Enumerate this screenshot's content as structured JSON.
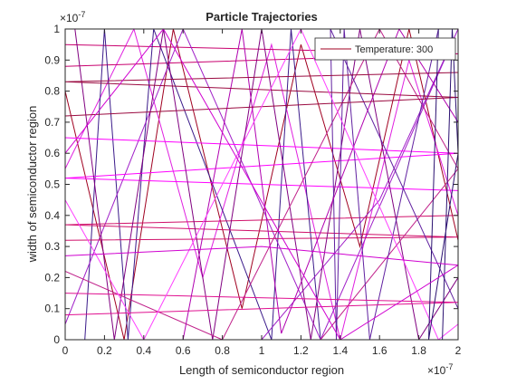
{
  "chart_data": {
    "type": "line",
    "title": "Particle Trajectories",
    "xlabel": "Length of semiconductor region",
    "ylabel": "width of semiconductor region",
    "x_exponent": "×10",
    "x_exponent_power": "-7",
    "y_exponent": "×10",
    "y_exponent_power": "-7",
    "xlim": [
      0,
      2
    ],
    "ylim": [
      0,
      1
    ],
    "xticks": [
      0,
      0.2,
      0.4,
      0.6,
      0.8,
      1,
      1.2,
      1.4,
      1.6,
      1.8,
      2
    ],
    "yticks": [
      0,
      0.1,
      0.2,
      0.3,
      0.4,
      0.5,
      0.6,
      0.7,
      0.8,
      0.9,
      1
    ],
    "legend": "top-right",
    "series": [
      {
        "name": "Temperature: 300",
        "color": "#a00020",
        "x": [
          0,
          0.3,
          0.55,
          0.9,
          1.2,
          1.5,
          1.75,
          2
        ],
        "y": [
          0.8,
          0,
          1,
          0.1,
          0.95,
          0.3,
          1,
          0.32
        ]
      },
      {
        "color": "#e020e0",
        "x": [
          0,
          0.35,
          0.7,
          1.05,
          1.4,
          1.75,
          2
        ],
        "y": [
          0.55,
          1,
          0.2,
          0.95,
          0,
          0.9,
          0.4
        ]
      },
      {
        "color": "#c8006e",
        "x": [
          0,
          2,
          0
        ],
        "y": [
          0.95,
          0.92,
          0.88
        ]
      },
      {
        "color": "#3a1a8a",
        "x": [
          0.1,
          0.2,
          0.32,
          0.45,
          1.05,
          1.15,
          1.3
        ],
        "y": [
          0,
          1,
          0,
          1,
          0,
          1,
          0
        ]
      },
      {
        "color": "#a020c8",
        "x": [
          0,
          0.6,
          1.3,
          2,
          1.6,
          1.0
        ],
        "y": [
          0.05,
          1,
          0,
          1,
          0.45,
          0
        ]
      },
      {
        "color": "#d0106a",
        "x": [
          0,
          2,
          0,
          2
        ],
        "y": [
          0.32,
          0.33,
          0.37,
          0.4
        ]
      },
      {
        "color": "#ff00ff",
        "x": [
          0,
          2,
          0,
          2
        ],
        "y": [
          0.65,
          0.6,
          0.52,
          0.48
        ]
      },
      {
        "color": "#800080",
        "x": [
          0.05,
          0.25,
          0.5,
          0.75,
          1.0,
          1.25,
          1.5,
          1.8,
          2
        ],
        "y": [
          1,
          0,
          1,
          0,
          1,
          0,
          1,
          0,
          0.2
        ]
      },
      {
        "color": "#c0208a",
        "x": [
          0,
          0.8,
          1.6,
          2,
          1.3
        ],
        "y": [
          0.22,
          0,
          1,
          0.55,
          0
        ]
      },
      {
        "color": "#6020a0",
        "x": [
          2,
          1.35,
          1.38,
          1.42,
          1.55,
          1.9
        ],
        "y": [
          0.1,
          1,
          0,
          1,
          0,
          1
        ]
      },
      {
        "color": "#e01090",
        "x": [
          0,
          2,
          0
        ],
        "y": [
          0.15,
          0.12,
          0.08
        ]
      },
      {
        "color": "#b000b0",
        "x": [
          0.6,
          0.9,
          1.1,
          1.7,
          2
        ],
        "y": [
          0,
          1,
          0.02,
          1,
          0.7
        ]
      },
      {
        "color": "#9a0a40",
        "x": [
          0,
          2,
          0,
          2
        ],
        "y": [
          0.72,
          0.78,
          0.83,
          0.86
        ]
      },
      {
        "color": "#ff40ff",
        "x": [
          0,
          0.4,
          1.2,
          1.9,
          2
        ],
        "y": [
          0.45,
          0,
          1,
          0,
          0.05
        ]
      },
      {
        "color": "#2a1070",
        "x": [
          1.92,
          1.97,
          2,
          1.85,
          1.9
        ],
        "y": [
          0,
          1,
          0.6,
          0,
          1
        ]
      },
      {
        "color": "#d000d0",
        "x": [
          0,
          1.0,
          2,
          1.4,
          0.5,
          0
        ],
        "y": [
          0.27,
          0.3,
          0.24,
          0,
          1,
          0.6
        ]
      }
    ]
  }
}
